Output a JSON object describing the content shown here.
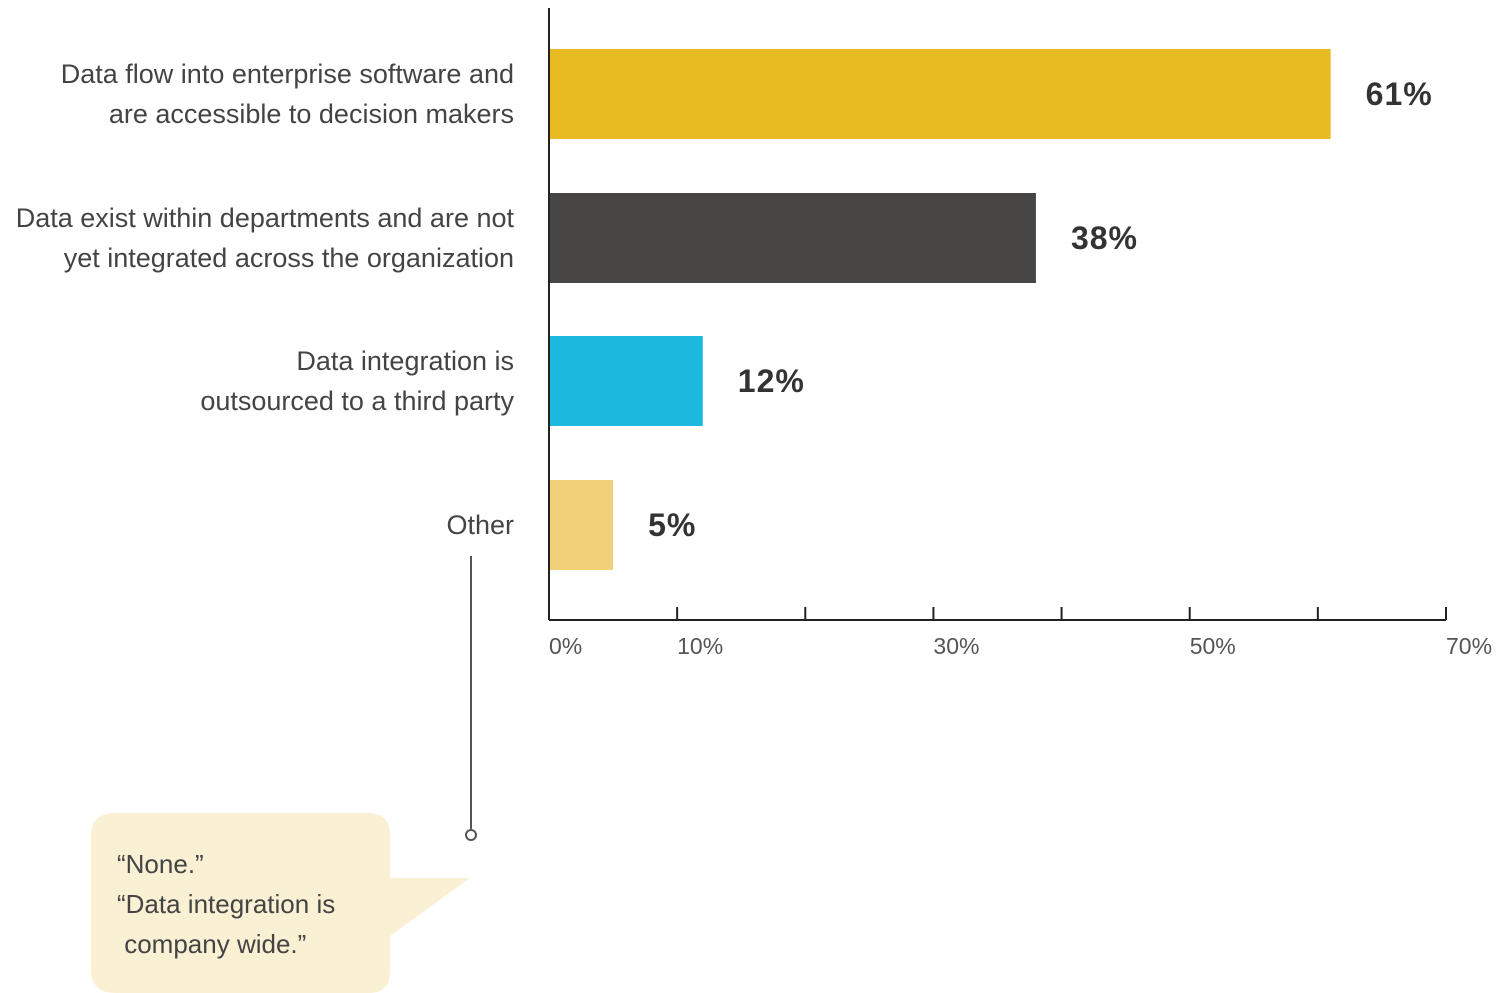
{
  "chart_data": {
    "type": "bar",
    "orientation": "horizontal",
    "categories": [
      [
        "Data flow into enterprise software and",
        "are accessible to decision makers"
      ],
      [
        "Data exist within departments and are not",
        "yet integrated across the organization"
      ],
      [
        "Data integration is",
        "outsourced to a third party"
      ],
      [
        "Other"
      ]
    ],
    "values": [
      61,
      38,
      12,
      5
    ],
    "value_labels": [
      "61%",
      "38%",
      "12%",
      "5%"
    ],
    "colors": [
      "#E9BB22",
      "#474644",
      "#1CB8DE",
      "#F1D077"
    ],
    "xlim": [
      0,
      70
    ],
    "tick_values": [
      0,
      10,
      20,
      30,
      40,
      50,
      60,
      70
    ],
    "tick_labels": [
      {
        "value": 0,
        "label": "0%"
      },
      {
        "value": 10,
        "label": "10%"
      },
      {
        "value": 30,
        "label": "30%"
      },
      {
        "value": 50,
        "label": "50%"
      },
      {
        "value": 70,
        "label": "70%"
      }
    ],
    "grid": false,
    "callout": {
      "category": "Other",
      "lines": [
        "“None.”",
        "“Data integration is",
        " company wide.”"
      ],
      "background": "#FAF0D4"
    }
  }
}
